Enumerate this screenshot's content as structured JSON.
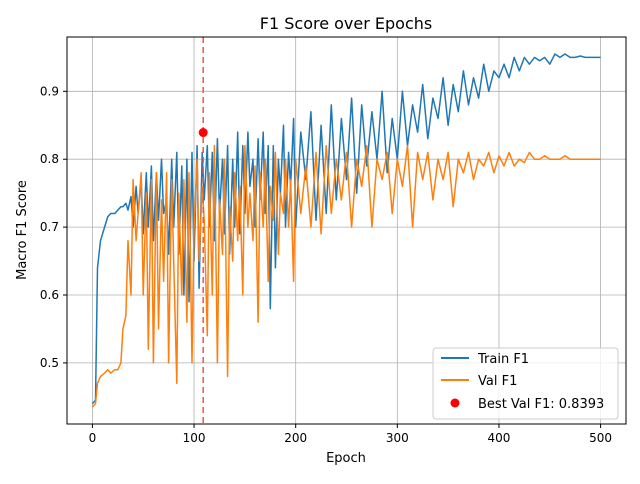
{
  "chart_data": {
    "type": "line",
    "title": "F1 Score over Epochs",
    "xlabel": "Epoch",
    "ylabel": "Macro F1 Score",
    "xlim": [
      -25,
      525
    ],
    "ylim": [
      0.41,
      0.98
    ],
    "xticks": [
      0,
      100,
      200,
      300,
      400,
      500
    ],
    "yticks": [
      0.5,
      0.6,
      0.7,
      0.8,
      0.9
    ],
    "grid": true,
    "legend_position": "bottom-right",
    "best_epoch_line": {
      "x": 109,
      "color": "#e8564a"
    },
    "best_point": {
      "name": "Best Val F1: 0.8393",
      "x": 109,
      "y": 0.8393,
      "color": "#ff0000"
    },
    "series": [
      {
        "name": "Train F1",
        "color": "#1f77b4",
        "x": [
          0,
          3,
          5,
          8,
          12,
          15,
          18,
          22,
          25,
          28,
          30,
          33,
          35,
          38,
          40,
          43,
          45,
          48,
          50,
          53,
          55,
          58,
          60,
          63,
          65,
          68,
          70,
          73,
          75,
          78,
          80,
          83,
          85,
          88,
          90,
          93,
          95,
          98,
          100,
          103,
          105,
          108,
          110,
          113,
          115,
          118,
          120,
          123,
          125,
          128,
          130,
          133,
          135,
          138,
          140,
          143,
          145,
          148,
          150,
          153,
          155,
          158,
          160,
          163,
          165,
          168,
          170,
          173,
          175,
          178,
          180,
          183,
          185,
          188,
          190,
          193,
          195,
          198,
          200,
          205,
          210,
          215,
          220,
          225,
          230,
          235,
          240,
          245,
          250,
          255,
          260,
          265,
          270,
          275,
          280,
          285,
          290,
          295,
          300,
          305,
          310,
          315,
          320,
          325,
          330,
          335,
          340,
          345,
          350,
          355,
          360,
          365,
          370,
          375,
          380,
          385,
          390,
          395,
          400,
          405,
          410,
          415,
          420,
          425,
          430,
          435,
          440,
          445,
          450,
          455,
          460,
          465,
          470,
          475,
          480,
          485,
          490,
          495,
          500
        ],
        "values": [
          0.44,
          0.445,
          0.64,
          0.68,
          0.7,
          0.715,
          0.72,
          0.72,
          0.725,
          0.73,
          0.73,
          0.735,
          0.725,
          0.745,
          0.7,
          0.76,
          0.72,
          0.77,
          0.69,
          0.78,
          0.7,
          0.79,
          0.68,
          0.78,
          0.71,
          0.8,
          0.72,
          0.74,
          0.66,
          0.8,
          0.7,
          0.81,
          0.66,
          0.79,
          0.6,
          0.8,
          0.59,
          0.81,
          0.65,
          0.82,
          0.61,
          0.81,
          0.74,
          0.82,
          0.7,
          0.81,
          0.68,
          0.83,
          0.72,
          0.8,
          0.69,
          0.82,
          0.66,
          0.8,
          0.7,
          0.84,
          0.69,
          0.82,
          0.72,
          0.84,
          0.76,
          0.8,
          0.7,
          0.83,
          0.74,
          0.84,
          0.72,
          0.82,
          0.58,
          0.82,
          0.64,
          0.8,
          0.75,
          0.85,
          0.7,
          0.81,
          0.76,
          0.86,
          0.7,
          0.84,
          0.77,
          0.87,
          0.71,
          0.85,
          0.72,
          0.88,
          0.74,
          0.86,
          0.77,
          0.89,
          0.75,
          0.88,
          0.79,
          0.87,
          0.8,
          0.9,
          0.78,
          0.86,
          0.8,
          0.9,
          0.82,
          0.88,
          0.84,
          0.91,
          0.83,
          0.89,
          0.86,
          0.92,
          0.85,
          0.91,
          0.87,
          0.93,
          0.88,
          0.92,
          0.89,
          0.94,
          0.9,
          0.93,
          0.92,
          0.94,
          0.92,
          0.95,
          0.93,
          0.95,
          0.94,
          0.95,
          0.945,
          0.95,
          0.94,
          0.955,
          0.95,
          0.955,
          0.95,
          0.95,
          0.952,
          0.95,
          0.95,
          0.95,
          0.95
        ]
      },
      {
        "name": "Val F1",
        "color": "#ff7f0e",
        "x": [
          0,
          3,
          5,
          8,
          12,
          15,
          18,
          22,
          25,
          28,
          30,
          33,
          35,
          38,
          40,
          43,
          45,
          48,
          50,
          53,
          55,
          58,
          60,
          63,
          65,
          68,
          70,
          73,
          75,
          78,
          80,
          83,
          85,
          88,
          90,
          93,
          95,
          98,
          100,
          103,
          105,
          108,
          110,
          113,
          115,
          118,
          120,
          123,
          125,
          128,
          130,
          133,
          135,
          138,
          140,
          143,
          145,
          148,
          150,
          153,
          155,
          158,
          160,
          163,
          165,
          168,
          170,
          173,
          175,
          178,
          180,
          183,
          185,
          188,
          190,
          193,
          195,
          198,
          200,
          205,
          210,
          215,
          220,
          225,
          230,
          235,
          240,
          245,
          250,
          255,
          260,
          265,
          270,
          275,
          280,
          285,
          290,
          295,
          300,
          305,
          310,
          315,
          320,
          325,
          330,
          335,
          340,
          345,
          350,
          355,
          360,
          365,
          370,
          375,
          380,
          385,
          390,
          395,
          400,
          405,
          410,
          415,
          420,
          425,
          430,
          435,
          440,
          445,
          450,
          455,
          460,
          465,
          470,
          475,
          480,
          485,
          490,
          495,
          500
        ],
        "values": [
          0.435,
          0.44,
          0.47,
          0.48,
          0.485,
          0.49,
          0.485,
          0.49,
          0.49,
          0.5,
          0.55,
          0.57,
          0.68,
          0.6,
          0.77,
          0.68,
          0.72,
          0.78,
          0.6,
          0.75,
          0.52,
          0.77,
          0.5,
          0.78,
          0.55,
          0.74,
          0.62,
          0.78,
          0.5,
          0.77,
          0.65,
          0.47,
          0.75,
          0.6,
          0.77,
          0.56,
          0.78,
          0.5,
          0.7,
          0.8,
          0.65,
          0.76,
          0.71,
          0.54,
          0.78,
          0.6,
          0.82,
          0.5,
          0.74,
          0.66,
          0.8,
          0.48,
          0.73,
          0.65,
          0.78,
          0.68,
          0.76,
          0.6,
          0.82,
          0.7,
          0.75,
          0.68,
          0.79,
          0.56,
          0.78,
          0.7,
          0.8,
          0.62,
          0.76,
          0.71,
          0.81,
          0.66,
          0.75,
          0.72,
          0.8,
          0.7,
          0.77,
          0.62,
          0.8,
          0.72,
          0.79,
          0.7,
          0.81,
          0.69,
          0.82,
          0.72,
          0.8,
          0.74,
          0.81,
          0.7,
          0.8,
          0.76,
          0.82,
          0.7,
          0.8,
          0.77,
          0.81,
          0.72,
          0.8,
          0.76,
          0.82,
          0.7,
          0.81,
          0.77,
          0.81,
          0.74,
          0.8,
          0.77,
          0.81,
          0.73,
          0.8,
          0.78,
          0.81,
          0.77,
          0.8,
          0.79,
          0.81,
          0.78,
          0.805,
          0.79,
          0.81,
          0.79,
          0.8,
          0.795,
          0.81,
          0.8,
          0.8,
          0.805,
          0.8,
          0.8,
          0.8,
          0.805,
          0.8,
          0.8,
          0.8,
          0.8,
          0.8,
          0.8,
          0.8
        ]
      }
    ]
  }
}
